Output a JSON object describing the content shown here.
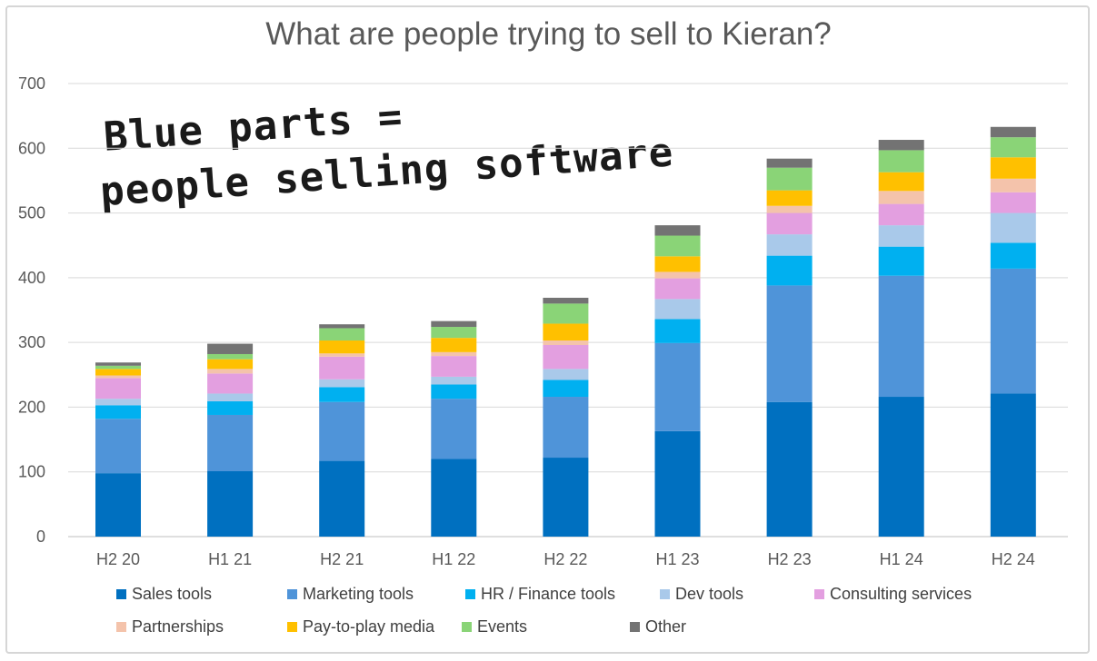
{
  "chart_data": {
    "type": "bar",
    "stacked": true,
    "title": "What are people trying to sell to Kieran?",
    "xlabel": "",
    "ylabel": "",
    "ylim": [
      0,
      700
    ],
    "yticks": [
      0,
      100,
      200,
      300,
      400,
      500,
      600,
      700
    ],
    "grid": true,
    "legend_position": "bottom",
    "annotation": [
      "Blue parts =",
      "people selling software"
    ],
    "categories": [
      "H2 20",
      "H1 21",
      "H2 21",
      "H1 22",
      "H2 22",
      "H1 23",
      "H2 23",
      "H1 24",
      "H2 24"
    ],
    "series": [
      {
        "name": "Sales tools",
        "color": "#0070c0",
        "values": [
          98,
          101,
          117,
          120,
          122,
          163,
          208,
          216,
          221
        ]
      },
      {
        "name": "Marketing tools",
        "color": "#4f94d9",
        "values": [
          84,
          87,
          91,
          93,
          94,
          136,
          180,
          187,
          193
        ]
      },
      {
        "name": "HR / Finance tools",
        "color": "#00b0f0",
        "values": [
          21,
          21,
          23,
          22,
          26,
          37,
          46,
          45,
          40
        ]
      },
      {
        "name": "Dev tools",
        "color": "#a9c9ea",
        "values": [
          10,
          12,
          12,
          12,
          17,
          31,
          33,
          33,
          46
        ]
      },
      {
        "name": "Consulting services",
        "color": "#e39fe0",
        "values": [
          32,
          31,
          35,
          32,
          37,
          32,
          33,
          33,
          32
        ]
      },
      {
        "name": "Partnerships",
        "color": "#f4c3ab",
        "values": [
          4,
          7,
          5,
          6,
          7,
          10,
          11,
          20,
          21
        ]
      },
      {
        "name": "Pay-to-play media",
        "color": "#ffc000",
        "values": [
          10,
          15,
          20,
          22,
          26,
          24,
          24,
          29,
          33
        ]
      },
      {
        "name": "Events",
        "color": "#8ad477",
        "values": [
          5,
          8,
          19,
          17,
          31,
          32,
          35,
          34,
          31
        ]
      },
      {
        "name": "Other",
        "color": "#737373",
        "values": [
          5,
          16,
          6,
          9,
          9,
          16,
          14,
          16,
          16
        ]
      }
    ]
  }
}
